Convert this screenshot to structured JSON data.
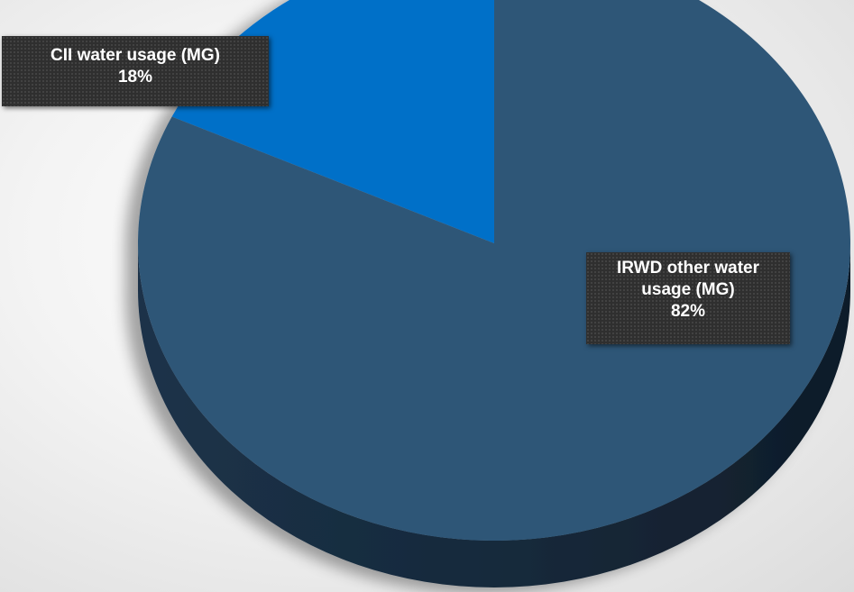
{
  "chart_data": {
    "type": "pie",
    "style": "3d",
    "title": "",
    "slices": [
      {
        "name": "CII water usage (MG)",
        "percent_label": "18%",
        "value": 18,
        "color": "#0070C8",
        "side_color": "#004f8f"
      },
      {
        "name": "IRWD other water usage (MG)",
        "percent_label": "82%",
        "value": 82,
        "color": "#2E5677",
        "side_color": "#16293b"
      }
    ],
    "legend": "none"
  }
}
